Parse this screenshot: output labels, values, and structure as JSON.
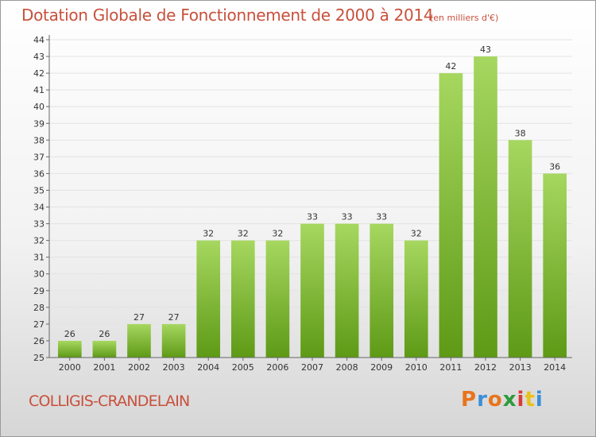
{
  "header": {
    "title": "Dotation Globale de Fonctionnement de 2000 à 2014",
    "subtitle": "(en milliers d'€)"
  },
  "footer": {
    "place": "COLLIGIS-CRANDELAIN",
    "logo": "Proxiti",
    "logo_colors": [
      "#e8741c",
      "#3a8fd8",
      "#e8741c",
      "#2e9a3a",
      "#d83a3a",
      "#e8c21c",
      "#3a8fd8"
    ]
  },
  "colors": {
    "bar_light": "#a6d760",
    "bar_dark": "#5e9a16",
    "text": "#c8503c",
    "axis_text": "#333333",
    "grid": "#e3e3e3"
  },
  "chart_data": {
    "type": "bar",
    "categories": [
      "2000",
      "2001",
      "2002",
      "2003",
      "2004",
      "2005",
      "2006",
      "2007",
      "2008",
      "2009",
      "2010",
      "2011",
      "2012",
      "2013",
      "2014"
    ],
    "values": [
      26,
      26,
      27,
      27,
      32,
      32,
      32,
      33,
      33,
      33,
      32,
      42,
      43,
      38,
      36
    ],
    "title": "Dotation Globale de Fonctionnement de 2000 à 2014",
    "subtitle": "(en milliers d'€)",
    "xlabel": "",
    "ylabel": "",
    "ylim": [
      25,
      44
    ],
    "ytick_step": 1,
    "grid": true,
    "legend": "none"
  }
}
